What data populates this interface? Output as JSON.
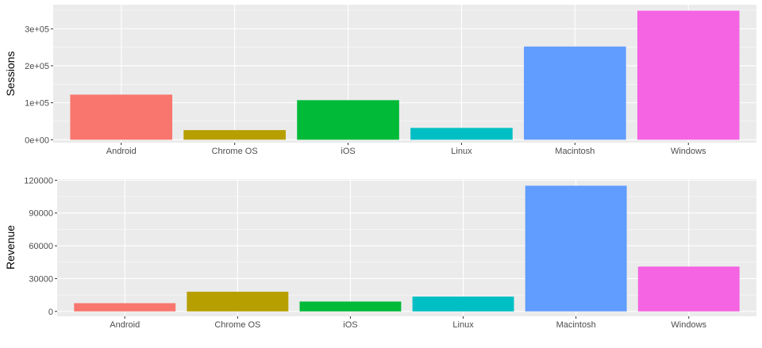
{
  "chart_data": [
    {
      "type": "bar",
      "ylabel": "Sessions",
      "categories": [
        "Android",
        "Chrome OS",
        "iOS",
        "Linux",
        "Macintosh",
        "Windows"
      ],
      "values": [
        122000,
        26000,
        107000,
        32000,
        252000,
        349000
      ],
      "colors": [
        "#F8766D",
        "#B79F00",
        "#00BA38",
        "#00BFC4",
        "#619CFF",
        "#F564E3"
      ],
      "ylim": [
        -8000,
        365000
      ],
      "yticks": [
        0,
        100000,
        200000,
        300000
      ],
      "yticklabels": [
        "0e+00",
        "1e+05",
        "2e+05",
        "3e+05"
      ],
      "grid": true
    },
    {
      "type": "bar",
      "ylabel": "Revenue",
      "categories": [
        "Android",
        "Chrome OS",
        "iOS",
        "Linux",
        "Macintosh",
        "Windows"
      ],
      "values": [
        7500,
        18000,
        9000,
        13500,
        115000,
        41000
      ],
      "colors": [
        "#F8766D",
        "#B79F00",
        "#00BA38",
        "#00BFC4",
        "#619CFF",
        "#F564E3"
      ],
      "ylim": [
        -4500,
        121000
      ],
      "yticks": [
        0,
        30000,
        60000,
        90000,
        120000
      ],
      "yticklabels": [
        "0",
        "30000",
        "60000",
        "90000",
        "120000"
      ],
      "grid": true
    }
  ]
}
